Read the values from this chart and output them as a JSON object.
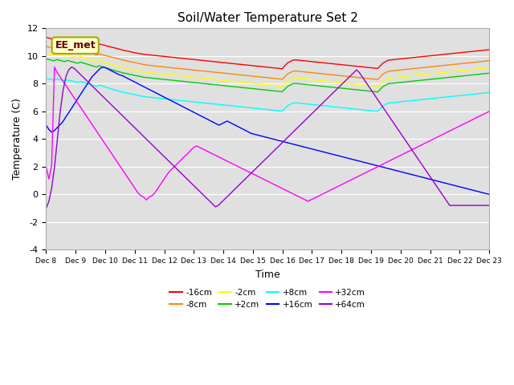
{
  "title": "Soil/Water Temperature Set 2",
  "xlabel": "Time",
  "ylabel": "Temperature (C)",
  "ylim": [
    -4,
    12
  ],
  "xlim": [
    0,
    15
  ],
  "x_tick_labels": [
    "Dec 8",
    "Dec 9",
    "Dec 10",
    "Dec 11",
    "Dec 12",
    "Dec 13",
    "Dec 14",
    "Dec 15",
    "Dec 16",
    "Dec 17",
    "Dec 18",
    "Dec 19",
    "Dec 20",
    "Dec 21",
    "Dec 22",
    "Dec 23"
  ],
  "bg_color": "#e0e0e0",
  "series": {
    "-16cm": {
      "color": "#ff0000",
      "values": [
        11.35,
        11.3,
        11.25,
        11.2,
        11.3,
        11.25,
        11.2,
        11.15,
        11.22,
        11.18,
        11.12,
        11.08,
        11.02,
        11.08,
        11.04,
        11.0,
        10.95,
        10.9,
        10.85,
        10.8,
        10.88,
        10.82,
        10.78,
        10.72,
        10.68,
        10.62,
        10.58,
        10.52,
        10.48,
        10.42,
        10.38,
        10.35,
        10.3,
        10.25,
        10.22,
        10.18,
        10.15,
        10.12,
        10.1,
        10.08,
        10.06,
        10.04,
        10.02,
        10.0,
        9.98,
        9.96,
        9.94,
        9.92,
        9.9,
        9.88,
        9.86,
        9.84,
        9.82,
        9.8,
        9.78,
        9.76,
        9.74,
        9.72,
        9.7,
        9.68,
        9.66,
        9.64,
        9.62,
        9.6,
        9.58,
        9.56,
        9.54,
        9.52,
        9.5,
        9.48,
        9.46,
        9.44,
        9.42,
        9.4,
        9.38,
        9.36,
        9.34,
        9.32,
        9.3,
        9.28,
        9.26,
        9.24,
        9.22,
        9.2,
        9.18,
        9.16,
        9.14,
        9.12,
        9.1,
        9.08,
        9.3,
        9.5,
        9.6,
        9.7,
        9.72,
        9.7,
        9.68,
        9.66,
        9.64,
        9.62,
        9.6,
        9.58,
        9.56,
        9.54,
        9.52,
        9.5,
        9.48,
        9.46,
        9.44,
        9.42,
        9.4,
        9.38,
        9.36,
        9.34,
        9.32,
        9.3,
        9.28,
        9.26,
        9.24,
        9.22,
        9.2,
        9.18,
        9.16,
        9.14,
        9.12,
        9.1,
        9.3,
        9.5,
        9.6,
        9.7,
        9.72,
        9.74,
        9.76,
        9.78,
        9.8,
        9.82,
        9.84,
        9.86,
        9.88,
        9.9,
        9.92,
        9.94,
        9.96,
        9.98,
        10.0,
        10.02,
        10.04,
        10.06,
        10.08,
        10.1,
        10.12,
        10.14,
        10.16,
        10.18,
        10.2,
        10.22,
        10.24,
        10.26,
        10.28,
        10.3,
        10.32,
        10.34,
        10.36,
        10.38,
        10.4,
        10.42,
        10.44,
        10.46
      ]
    },
    "-8cm": {
      "color": "#ff8800",
      "values": [
        10.7,
        10.65,
        10.6,
        10.55,
        10.65,
        10.6,
        10.55,
        10.5,
        10.58,
        10.52,
        10.48,
        10.42,
        10.38,
        10.44,
        10.38,
        10.32,
        10.26,
        10.2,
        10.14,
        10.08,
        10.16,
        10.1,
        10.06,
        10.0,
        9.96,
        9.9,
        9.86,
        9.8,
        9.76,
        9.7,
        9.66,
        9.62,
        9.58,
        9.54,
        9.5,
        9.46,
        9.42,
        9.38,
        9.35,
        9.32,
        9.3,
        9.28,
        9.26,
        9.24,
        9.22,
        9.2,
        9.18,
        9.16,
        9.14,
        9.12,
        9.1,
        9.08,
        9.06,
        9.04,
        9.02,
        9.0,
        8.98,
        8.96,
        8.94,
        8.92,
        8.9,
        8.88,
        8.86,
        8.84,
        8.82,
        8.8,
        8.78,
        8.76,
        8.74,
        8.72,
        8.7,
        8.68,
        8.66,
        8.64,
        8.62,
        8.6,
        8.58,
        8.56,
        8.54,
        8.52,
        8.5,
        8.48,
        8.46,
        8.44,
        8.42,
        8.4,
        8.38,
        8.36,
        8.34,
        8.32,
        8.5,
        8.7,
        8.8,
        8.9,
        8.92,
        8.9,
        8.88,
        8.86,
        8.84,
        8.82,
        8.8,
        8.78,
        8.76,
        8.74,
        8.72,
        8.7,
        8.68,
        8.66,
        8.64,
        8.62,
        8.6,
        8.58,
        8.56,
        8.54,
        8.52,
        8.5,
        8.48,
        8.46,
        8.44,
        8.42,
        8.4,
        8.38,
        8.36,
        8.34,
        8.32,
        8.3,
        8.5,
        8.7,
        8.8,
        8.9,
        8.92,
        8.94,
        8.96,
        8.98,
        9.0,
        9.02,
        9.04,
        9.06,
        9.08,
        9.1,
        9.12,
        9.14,
        9.16,
        9.18,
        9.2,
        9.22,
        9.24,
        9.26,
        9.28,
        9.3,
        9.32,
        9.34,
        9.36,
        9.38,
        9.4,
        9.42,
        9.44,
        9.46,
        9.48,
        9.5,
        9.52,
        9.54,
        9.56,
        9.58,
        9.6,
        9.62,
        9.64,
        9.66
      ]
    },
    "-2cm": {
      "color": "#ffff00",
      "values": [
        10.2,
        10.15,
        10.1,
        10.05,
        10.15,
        10.1,
        10.05,
        10.0,
        10.08,
        10.02,
        9.98,
        9.92,
        9.88,
        9.96,
        9.88,
        9.82,
        9.76,
        9.7,
        9.64,
        9.58,
        9.68,
        9.62,
        9.56,
        9.5,
        9.44,
        9.38,
        9.32,
        9.26,
        9.22,
        9.16,
        9.12,
        9.08,
        9.04,
        9.0,
        8.96,
        8.92,
        8.88,
        8.84,
        8.82,
        8.8,
        8.78,
        8.76,
        8.74,
        8.72,
        8.7,
        8.68,
        8.66,
        8.64,
        8.62,
        8.6,
        8.58,
        8.56,
        8.54,
        8.52,
        8.5,
        8.48,
        8.46,
        8.44,
        8.42,
        8.4,
        8.38,
        8.36,
        8.34,
        8.32,
        8.3,
        8.28,
        8.26,
        8.24,
        8.22,
        8.2,
        8.18,
        8.16,
        8.14,
        8.12,
        8.1,
        8.08,
        8.06,
        8.04,
        8.02,
        8.0,
        7.98,
        7.96,
        7.94,
        7.92,
        7.9,
        7.88,
        7.86,
        7.84,
        7.82,
        7.8,
        8.0,
        8.2,
        8.3,
        8.4,
        8.42,
        8.4,
        8.38,
        8.36,
        8.34,
        8.32,
        8.3,
        8.28,
        8.26,
        8.24,
        8.22,
        8.2,
        8.18,
        8.16,
        8.14,
        8.12,
        8.1,
        8.08,
        8.06,
        8.04,
        8.02,
        8.0,
        7.98,
        7.96,
        7.94,
        7.92,
        7.9,
        7.88,
        7.86,
        7.84,
        7.82,
        7.8,
        8.0,
        8.2,
        8.3,
        8.4,
        8.42,
        8.44,
        8.46,
        8.48,
        8.5,
        8.52,
        8.54,
        8.56,
        8.58,
        8.6,
        8.62,
        8.64,
        8.66,
        8.68,
        8.7,
        8.72,
        8.74,
        8.76,
        8.78,
        8.8,
        8.82,
        8.84,
        8.86,
        8.88,
        8.9,
        8.92,
        8.94,
        8.96,
        8.98,
        9.0,
        9.02,
        9.04,
        9.06,
        9.08,
        9.1,
        9.12,
        9.14,
        9.16
      ]
    },
    "+2cm": {
      "color": "#00cc00",
      "values": [
        9.8,
        9.75,
        9.7,
        9.65,
        9.75,
        9.7,
        9.65,
        9.6,
        9.68,
        9.62,
        9.58,
        9.52,
        9.48,
        9.56,
        9.5,
        9.44,
        9.38,
        9.32,
        9.26,
        9.2,
        9.3,
        9.24,
        9.18,
        9.12,
        9.06,
        9.0,
        8.94,
        8.88,
        8.84,
        8.78,
        8.74,
        8.7,
        8.66,
        8.62,
        8.58,
        8.54,
        8.5,
        8.46,
        8.44,
        8.42,
        8.4,
        8.38,
        8.36,
        8.34,
        8.32,
        8.3,
        8.28,
        8.26,
        8.24,
        8.22,
        8.2,
        8.18,
        8.16,
        8.14,
        8.12,
        8.1,
        8.08,
        8.06,
        8.04,
        8.02,
        8.0,
        7.98,
        7.96,
        7.94,
        7.92,
        7.9,
        7.88,
        7.86,
        7.84,
        7.82,
        7.8,
        7.78,
        7.76,
        7.74,
        7.72,
        7.7,
        7.68,
        7.66,
        7.64,
        7.62,
        7.6,
        7.58,
        7.56,
        7.54,
        7.52,
        7.5,
        7.48,
        7.46,
        7.44,
        7.42,
        7.6,
        7.8,
        7.9,
        8.0,
        8.02,
        8.0,
        7.98,
        7.96,
        7.94,
        7.92,
        7.9,
        7.88,
        7.86,
        7.84,
        7.82,
        7.8,
        7.78,
        7.76,
        7.74,
        7.72,
        7.7,
        7.68,
        7.66,
        7.64,
        7.62,
        7.6,
        7.58,
        7.56,
        7.54,
        7.52,
        7.5,
        7.48,
        7.46,
        7.44,
        7.42,
        7.4,
        7.6,
        7.8,
        7.9,
        8.0,
        8.02,
        8.04,
        8.06,
        8.08,
        8.1,
        8.12,
        8.14,
        8.16,
        8.18,
        8.2,
        8.22,
        8.24,
        8.26,
        8.28,
        8.3,
        8.32,
        8.34,
        8.36,
        8.38,
        8.4,
        8.42,
        8.44,
        8.46,
        8.48,
        8.5,
        8.52,
        8.54,
        8.56,
        8.58,
        8.6,
        8.62,
        8.64,
        8.66,
        8.68,
        8.7,
        8.72,
        8.74,
        8.76
      ]
    },
    "+8cm": {
      "color": "#00ffff",
      "values": [
        8.4,
        8.35,
        8.3,
        8.25,
        8.35,
        8.3,
        8.25,
        8.2,
        8.28,
        8.22,
        8.18,
        8.12,
        8.08,
        8.16,
        8.1,
        8.04,
        7.98,
        7.92,
        7.86,
        7.8,
        7.9,
        7.84,
        7.78,
        7.72,
        7.66,
        7.6,
        7.54,
        7.48,
        7.44,
        7.38,
        7.34,
        7.3,
        7.26,
        7.22,
        7.18,
        7.14,
        7.1,
        7.06,
        7.04,
        7.02,
        7.0,
        6.98,
        6.96,
        6.94,
        6.92,
        6.9,
        6.88,
        6.86,
        6.84,
        6.82,
        6.8,
        6.78,
        6.76,
        6.74,
        6.72,
        6.7,
        6.68,
        6.66,
        6.64,
        6.62,
        6.6,
        6.58,
        6.56,
        6.54,
        6.52,
        6.5,
        6.48,
        6.46,
        6.44,
        6.42,
        6.4,
        6.38,
        6.36,
        6.34,
        6.32,
        6.3,
        6.28,
        6.26,
        6.24,
        6.22,
        6.2,
        6.18,
        6.16,
        6.14,
        6.12,
        6.1,
        6.08,
        6.06,
        6.04,
        6.02,
        6.2,
        6.4,
        6.5,
        6.6,
        6.62,
        6.6,
        6.58,
        6.56,
        6.54,
        6.52,
        6.5,
        6.48,
        6.46,
        6.44,
        6.42,
        6.4,
        6.38,
        6.36,
        6.34,
        6.32,
        6.3,
        6.28,
        6.26,
        6.24,
        6.22,
        6.2,
        6.18,
        6.16,
        6.14,
        6.12,
        6.1,
        6.08,
        6.06,
        6.04,
        6.02,
        6.0,
        6.2,
        6.4,
        6.5,
        6.6,
        6.62,
        6.64,
        6.66,
        6.68,
        6.7,
        6.72,
        6.74,
        6.76,
        6.78,
        6.8,
        6.82,
        6.84,
        6.86,
        6.88,
        6.9,
        6.92,
        6.94,
        6.96,
        6.98,
        7.0,
        7.02,
        7.04,
        7.06,
        7.08,
        7.1,
        7.12,
        7.14,
        7.16,
        7.18,
        7.2,
        7.22,
        7.24,
        7.26,
        7.28,
        7.3,
        7.32,
        7.34,
        7.36
      ]
    },
    "+16cm": {
      "color": "#0000ff",
      "values": [
        5.0,
        4.7,
        4.5,
        4.6,
        4.8,
        5.0,
        5.2,
        5.5,
        5.8,
        6.1,
        6.4,
        6.7,
        7.0,
        7.3,
        7.6,
        7.9,
        8.2,
        8.5,
        8.7,
        8.9,
        9.1,
        9.2,
        9.15,
        9.05,
        8.95,
        8.85,
        8.75,
        8.65,
        8.6,
        8.5,
        8.4,
        8.3,
        8.2,
        8.1,
        8.0,
        7.9,
        7.8,
        7.7,
        7.6,
        7.5,
        7.4,
        7.3,
        7.2,
        7.1,
        7.0,
        6.9,
        6.8,
        6.7,
        6.6,
        6.5,
        6.4,
        6.3,
        6.2,
        6.1,
        6.0,
        5.9,
        5.8,
        5.7,
        5.6,
        5.5,
        5.4,
        5.3,
        5.2,
        5.1,
        5.0,
        5.1,
        5.2,
        5.3,
        5.2,
        5.1,
        5.0,
        4.9,
        4.8,
        4.7,
        4.6,
        4.5,
        4.4,
        4.35,
        4.3,
        4.25,
        4.2,
        4.15,
        4.1,
        4.05,
        4.0,
        3.95,
        3.9,
        3.85,
        3.8,
        3.75,
        3.7,
        3.65,
        3.6,
        3.55,
        3.5,
        3.45,
        3.4,
        3.35,
        3.3,
        3.25,
        3.2,
        3.15,
        3.1,
        3.05,
        3.0,
        2.95,
        2.9,
        2.85,
        2.8,
        2.75,
        2.7,
        2.65,
        2.6,
        2.55,
        2.5,
        2.45,
        2.4,
        2.35,
        2.3,
        2.25,
        2.2,
        2.15,
        2.1,
        2.05,
        2.0,
        1.95,
        1.9,
        1.85,
        1.8,
        1.75,
        1.7,
        1.65,
        1.6,
        1.55,
        1.5,
        1.45,
        1.4,
        1.35,
        1.3,
        1.25,
        1.2,
        1.15,
        1.1,
        1.05,
        1.0,
        0.95,
        0.9,
        0.85,
        0.8,
        0.75,
        0.7,
        0.65,
        0.6,
        0.55,
        0.5,
        0.45,
        0.4,
        0.35,
        0.3,
        0.25,
        0.2,
        0.15,
        0.1,
        0.05,
        0.0
      ]
    },
    "+32cm": {
      "color": "#ff00ff",
      "values": [
        2.0,
        1.1,
        2.1,
        9.2,
        8.8,
        8.5,
        8.2,
        7.9,
        7.6,
        7.3,
        7.0,
        6.7,
        6.4,
        6.1,
        5.8,
        5.5,
        5.2,
        4.9,
        4.6,
        4.3,
        4.0,
        3.7,
        3.4,
        3.1,
        2.8,
        2.5,
        2.2,
        1.9,
        1.6,
        1.3,
        1.0,
        0.7,
        0.4,
        0.1,
        -0.1,
        -0.2,
        -0.4,
        -0.2,
        -0.1,
        0.1,
        0.4,
        0.7,
        1.0,
        1.3,
        1.6,
        1.8,
        2.0,
        2.2,
        2.4,
        2.6,
        2.8,
        3.0,
        3.2,
        3.4,
        3.5,
        3.4,
        3.3,
        3.2,
        3.1,
        3.0,
        2.9,
        2.8,
        2.7,
        2.6,
        2.5,
        2.4,
        2.3,
        2.2,
        2.1,
        2.0,
        1.9,
        1.8,
        1.7,
        1.6,
        1.5,
        1.4,
        1.3,
        1.2,
        1.1,
        1.0,
        0.9,
        0.8,
        0.7,
        0.6,
        0.5,
        0.4,
        0.3,
        0.2,
        0.1,
        0.0,
        -0.1,
        -0.2,
        -0.3,
        -0.4,
        -0.5,
        -0.4,
        -0.3,
        -0.2,
        -0.1,
        0.0,
        0.1,
        0.2,
        0.3,
        0.4,
        0.5,
        0.6,
        0.7,
        0.8,
        0.9,
        1.0,
        1.1,
        1.2,
        1.3,
        1.4,
        1.5,
        1.6,
        1.7,
        1.8,
        1.9,
        2.0,
        2.1,
        2.2,
        2.3,
        2.4,
        2.5,
        2.6,
        2.7,
        2.8,
        2.9,
        3.0,
        3.1,
        3.2,
        3.3,
        3.4,
        3.5,
        3.6,
        3.7,
        3.8,
        3.9,
        4.0,
        4.1,
        4.2,
        4.3,
        4.4,
        4.5,
        4.6,
        4.7,
        4.8,
        4.9,
        5.0,
        5.1,
        5.2,
        5.3,
        5.4,
        5.5,
        5.6,
        5.7,
        5.8,
        5.9,
        6.0
      ]
    },
    "+64cm": {
      "color": "#9900cc",
      "values": [
        -1.0,
        -0.5,
        0.5,
        2.0,
        4.0,
        6.0,
        7.5,
        8.5,
        9.0,
        9.2,
        9.1,
        8.9,
        8.7,
        8.5,
        8.3,
        8.1,
        7.9,
        7.7,
        7.5,
        7.3,
        7.1,
        6.9,
        6.7,
        6.5,
        6.3,
        6.1,
        5.9,
        5.7,
        5.5,
        5.3,
        5.1,
        4.9,
        4.7,
        4.5,
        4.3,
        4.1,
        3.9,
        3.7,
        3.5,
        3.3,
        3.1,
        2.9,
        2.7,
        2.5,
        2.3,
        2.1,
        1.9,
        1.7,
        1.5,
        1.3,
        1.1,
        0.9,
        0.7,
        0.5,
        0.3,
        0.1,
        -0.1,
        -0.3,
        -0.5,
        -0.7,
        -0.9,
        -0.8,
        -0.6,
        -0.4,
        -0.2,
        0.0,
        0.2,
        0.4,
        0.6,
        0.8,
        1.0,
        1.2,
        1.4,
        1.6,
        1.8,
        2.0,
        2.2,
        2.4,
        2.6,
        2.8,
        3.0,
        3.2,
        3.4,
        3.6,
        3.8,
        4.0,
        4.2,
        4.4,
        4.6,
        4.8,
        5.0,
        5.2,
        5.4,
        5.6,
        5.8,
        6.0,
        6.2,
        6.4,
        6.6,
        6.8,
        7.0,
        7.2,
        7.4,
        7.6,
        7.8,
        8.0,
        8.2,
        8.4,
        8.6,
        8.8,
        9.0,
        8.8,
        8.5,
        8.2,
        7.9,
        7.6,
        7.3,
        7.0,
        6.7,
        6.4,
        6.1,
        5.8,
        5.5,
        5.2,
        4.9,
        4.6,
        4.3,
        4.0,
        3.7,
        3.4,
        3.1,
        2.8,
        2.5,
        2.2,
        1.9,
        1.6,
        1.3,
        1.0,
        0.7,
        0.4,
        0.1,
        -0.2,
        -0.5,
        -0.8,
        -0.8,
        -0.8,
        -0.8,
        -0.8,
        -0.8,
        -0.8,
        -0.8,
        -0.8,
        -0.8,
        -0.8,
        -0.8,
        -0.8,
        -0.8,
        -0.8
      ]
    }
  },
  "legend_label": "EE_met",
  "yticks": [
    -4,
    -2,
    0,
    2,
    4,
    6,
    8,
    10,
    12
  ]
}
